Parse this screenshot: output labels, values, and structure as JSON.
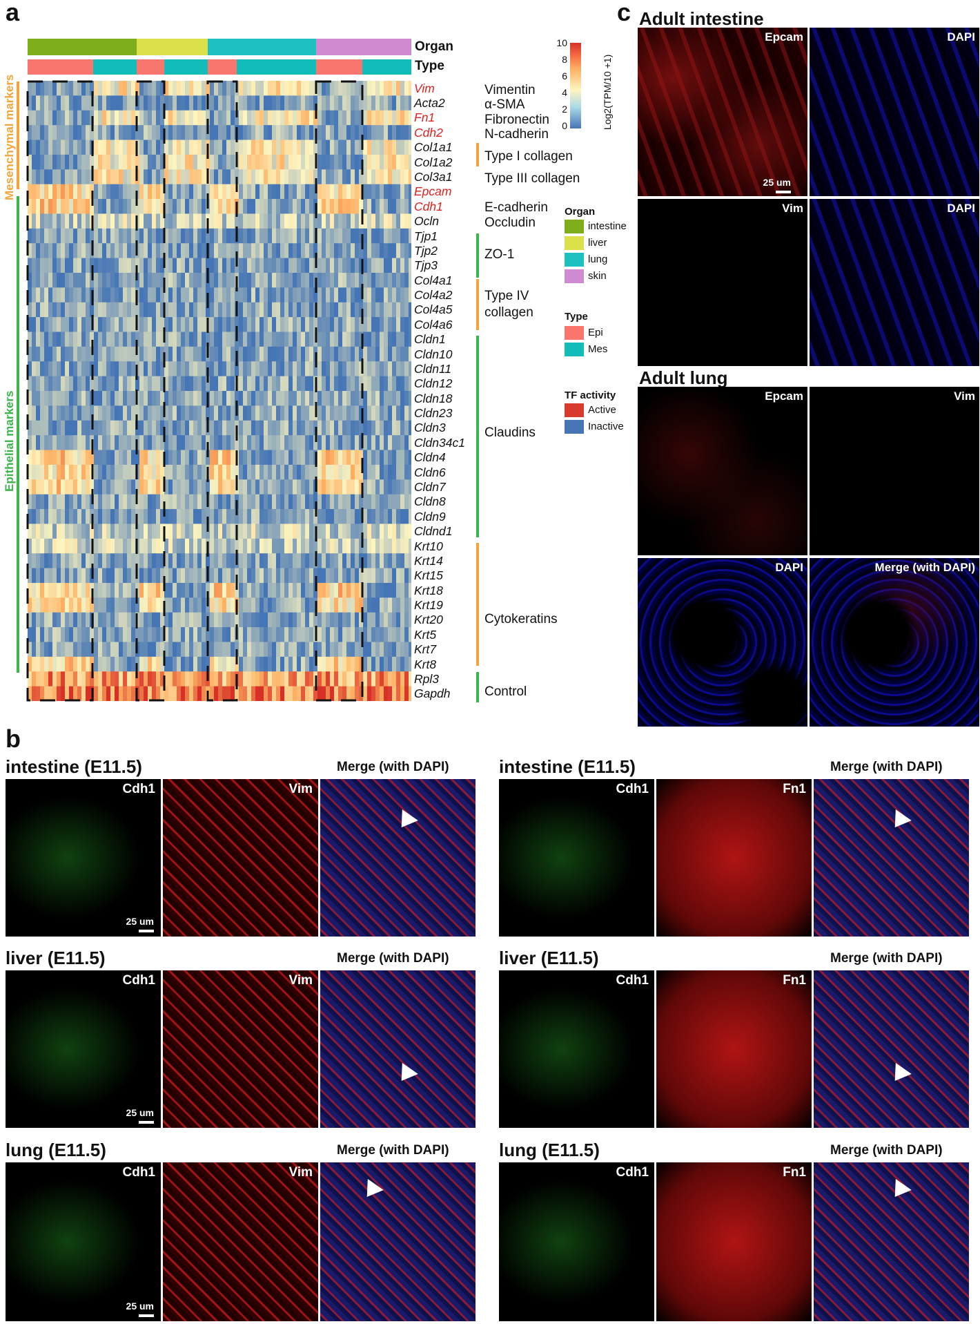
{
  "panel_a": {
    "letter": "a",
    "organ_label": "Organ",
    "type_label": "Type",
    "colorbar_title": "Log2(TPM/10 +1)",
    "colorbar_ticks": [
      "10",
      "8",
      "6",
      "4",
      "2",
      "0"
    ],
    "side_labels": {
      "mesenchymal": "Mesenchymal markers",
      "epithelial": "Epithelial markers"
    },
    "genes": [
      "Vim",
      "Acta2",
      "Fn1",
      "Cdh2",
      "Col1a1",
      "Col1a2",
      "Col3a1",
      "Epcam",
      "Cdh1",
      "Ocln",
      "Tjp1",
      "Tjp2",
      "Tjp3",
      "Col4a1",
      "Col4a2",
      "Col4a5",
      "Col4a6",
      "Cldn1",
      "Cldn10",
      "Cldn11",
      "Cldn12",
      "Cldn18",
      "Cldn23",
      "Cldn3",
      "Cldn34c1",
      "Cldn4",
      "Cldn6",
      "Cldn7",
      "Cldn8",
      "Cldn9",
      "Cldnd1",
      "Krt10",
      "Krt14",
      "Krt15",
      "Krt18",
      "Krt19",
      "Krt20",
      "Krt5",
      "Krt7",
      "Krt8",
      "Rpl3",
      "Gapdh"
    ],
    "red_genes": [
      "Vim",
      "Fn1",
      "Cdh2",
      "Epcam",
      "Cdh1"
    ],
    "protein_labels": {
      "vimentin": "Vimentin",
      "asma": "α-SMA",
      "fibronectin": "Fibronectin",
      "ncadherin": "N-cadherin",
      "col1": "Type I collagen",
      "col3": "Type III collagen",
      "ecadherin": "E-cadherin",
      "occludin": "Occludin",
      "zo1": "ZO-1",
      "col4_line1": "Type IV",
      "col4_line2": "collagen",
      "claudins": "Claudins",
      "cytokeratins": "Cytokeratins",
      "control": "Control"
    },
    "legend": {
      "organ_title": "Organ",
      "organs": [
        {
          "label": "intestine",
          "color": "#7fae1c"
        },
        {
          "label": "liver",
          "color": "#dbe04a"
        },
        {
          "label": "lung",
          "color": "#1fc0c0"
        },
        {
          "label": "skin",
          "color": "#cf8ad2"
        }
      ],
      "type_title": "Type",
      "types": [
        {
          "label": "Epi",
          "color": "#f8766d"
        },
        {
          "label": "Mes",
          "color": "#12bdb9"
        }
      ],
      "tf_title": "TF activity",
      "tf": [
        {
          "label": "Active",
          "color": "#d83a2e"
        },
        {
          "label": "Inactive",
          "color": "#4575b4"
        }
      ]
    },
    "colors": {
      "mesenchymal_bar": "#f4a53a",
      "epithelial_bar": "#3cb54a",
      "heat_low": "#4575b4",
      "heat_mid": "#fdf5c0",
      "heat_high": "#d73027"
    }
  },
  "panel_b": {
    "letter": "b",
    "scale": "25 um",
    "merge_label": "Merge (with DAPI)",
    "rows": [
      {
        "title": "intestine (E11.5)",
        "left": [
          "Cdh1",
          "Vim"
        ],
        "right": [
          "Cdh1",
          "Fn1"
        ]
      },
      {
        "title": "liver (E11.5)",
        "left": [
          "Cdh1",
          "Vim"
        ],
        "right": [
          "Cdh1",
          "Fn1"
        ]
      },
      {
        "title": "lung (E11.5)",
        "left": [
          "Cdh1",
          "Vim"
        ],
        "right": [
          "Cdh1",
          "Fn1"
        ]
      }
    ]
  },
  "panel_c": {
    "letter": "c",
    "intestine_title": "Adult intestine",
    "lung_title": "Adult lung",
    "scale": "25 um",
    "intestine_channels": [
      "Epcam",
      "DAPI",
      "Vim",
      "DAPI"
    ],
    "lung_channels": [
      "Epcam",
      "Vim",
      "DAPI",
      "Merge (with DAPI)"
    ]
  }
}
